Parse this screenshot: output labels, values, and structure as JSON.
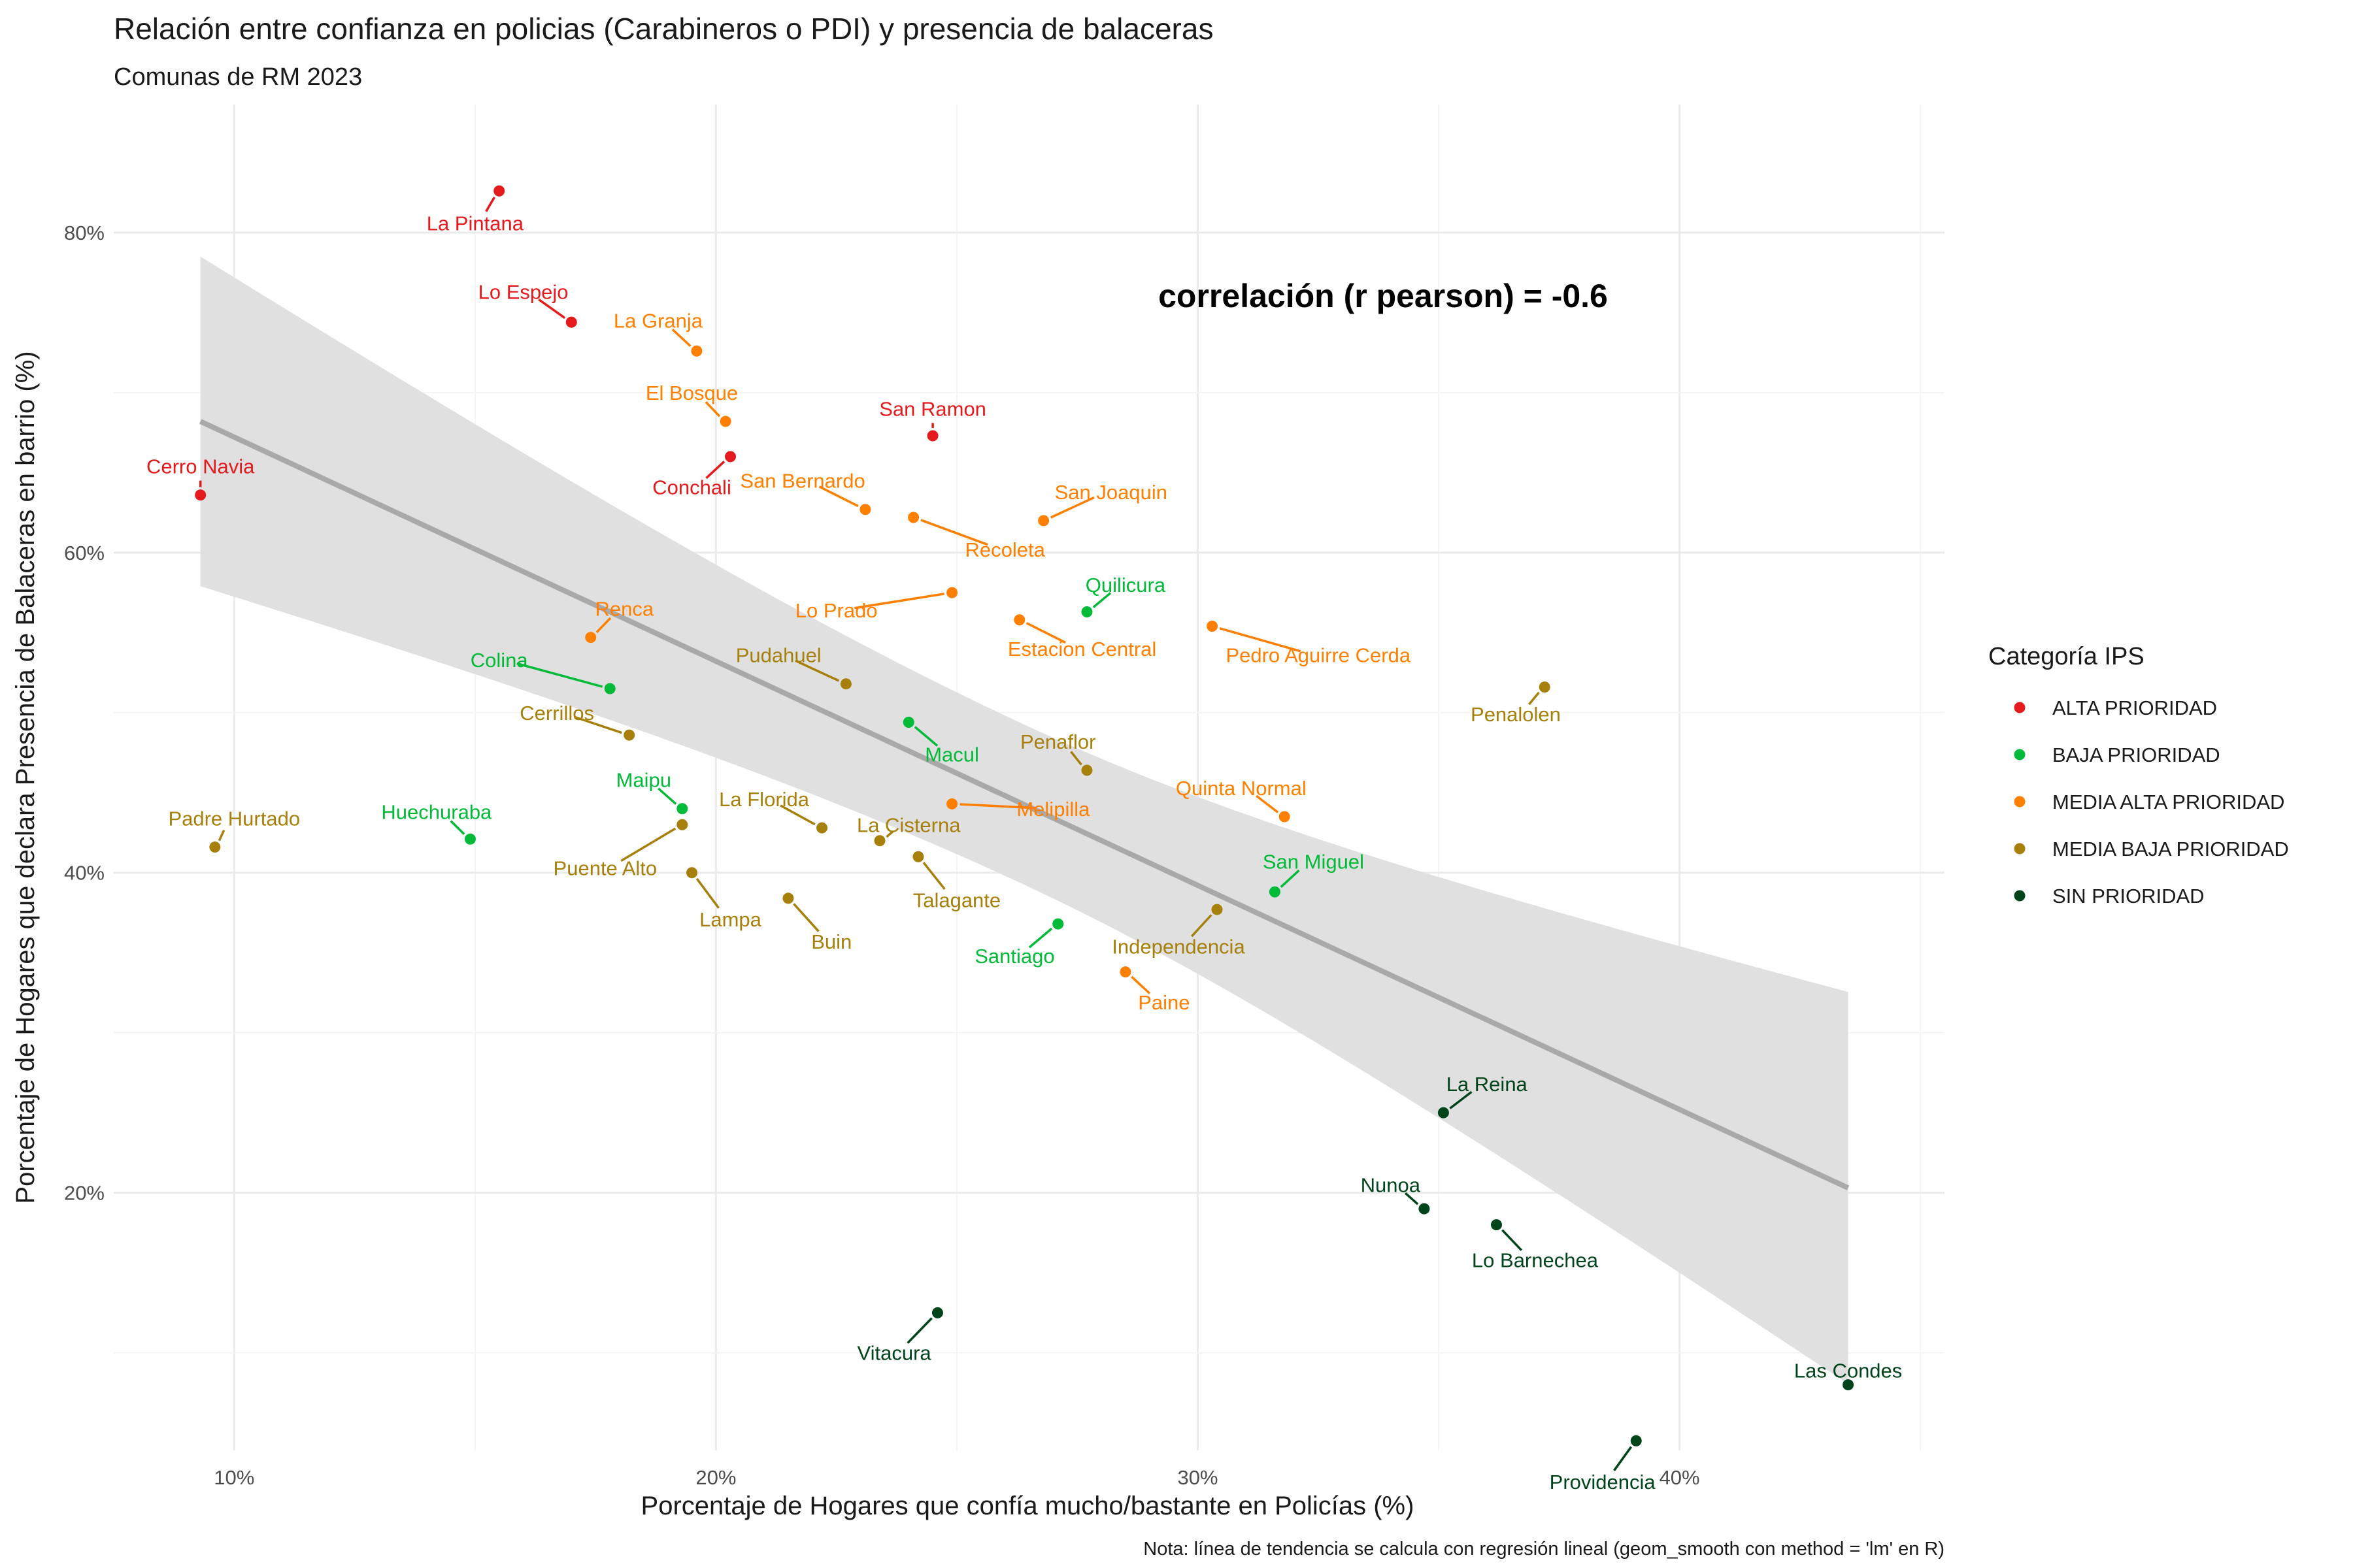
{
  "chart_data": {
    "type": "scatter",
    "title": "Relación entre confianza en policias (Carabineros o PDI) y presencia de balaceras",
    "subtitle": "Comunas de RM 2023",
    "xlabel": "Porcentaje de Hogares que confía mucho/bastante en Policías (%)",
    "ylabel": "Porcentaje de Hogares que declara Presencia de Balaceras en barrio (%)",
    "caption": "Nota: línea de tendencia se calcula con regresión lineal (geom_smooth con method = 'lm' en R)",
    "annotation": "correlación (r pearson) = -0.6",
    "xlim": [
      7.5,
      45.5
    ],
    "ylim": [
      0.039,
      0.88
    ],
    "x_ticks": [
      10,
      20,
      30,
      40
    ],
    "x_tick_labels": [
      "10%",
      "20%",
      "30%",
      "40%"
    ],
    "y_ticks": [
      0.2,
      0.4,
      0.6,
      0.8
    ],
    "y_tick_labels": [
      "20%",
      "40%",
      "60%",
      "80%"
    ],
    "grid": true,
    "legend": {
      "title": "Categoría IPS",
      "position": "right",
      "entries": [
        {
          "key": "ALTA",
          "label": "ALTA PRIORIDAD",
          "color": "#e41a1c"
        },
        {
          "key": "BAJA",
          "label": "BAJA PRIORIDAD",
          "color": "#00ba38"
        },
        {
          "key": "MEDIA_ALTA",
          "label": "MEDIA ALTA PRIORIDAD",
          "color": "#ff7f00"
        },
        {
          "key": "MEDIA_BAJA",
          "label": "MEDIA BAJA PRIORIDAD",
          "color": "#a6800a"
        },
        {
          "key": "SIN",
          "label": "SIN PRIORIDAD",
          "color": "#00441b"
        }
      ]
    },
    "trend": {
      "x": [
        9.3,
        43.5
      ],
      "y": [
        0.682,
        0.203
      ],
      "band_x": [
        9.3,
        43.5
      ],
      "band_lower": [
        0.58,
        0.08
      ],
      "band_upper": [
        0.786,
        0.325
      ],
      "line_color": "#a9a9a9",
      "band_color": "#e0e0e0"
    },
    "points": [
      {
        "name": "La Pintana",
        "x": 15.5,
        "y": 0.826,
        "cat": "ALTA",
        "lx": 15.0,
        "ly": 0.806
      },
      {
        "name": "Lo Espejo",
        "x": 17.0,
        "y": 0.744,
        "cat": "ALTA",
        "lx": 16.0,
        "ly": 3.63,
        "note": ""
      },
      {
        "name": "San Ramon",
        "x": 24.5,
        "y": 0.673,
        "cat": "ALTA",
        "lx": 24.5,
        "ly": 0.69
      },
      {
        "name": "Conchali",
        "x": 20.3,
        "y": 0.66,
        "cat": "ALTA",
        "lx": 19.5,
        "ly": 0.641
      },
      {
        "name": "Cerro Navia",
        "x": 9.3,
        "y": 0.636,
        "cat": "ALTA",
        "lx": 9.3,
        "ly": 0.654
      },
      {
        "name": "Quilicura",
        "x": 27.7,
        "y": 0.563,
        "cat": "BAJA",
        "lx": 28.5,
        "ly": 0.58
      },
      {
        "name": "Colina",
        "x": 17.8,
        "y": 0.515,
        "cat": "BAJA",
        "lx": 15.5,
        "ly": 0.533
      },
      {
        "name": "Macul",
        "x": 24.0,
        "y": 0.494,
        "cat": "BAJA",
        "lx": 24.9,
        "ly": 0.474
      },
      {
        "name": "Maipu",
        "x": 19.3,
        "y": 0.44,
        "cat": "BAJA",
        "lx": 18.5,
        "ly": 0.458
      },
      {
        "name": "Huechuraba",
        "x": 14.9,
        "y": 0.421,
        "cat": "BAJA",
        "lx": 14.2,
        "ly": 0.438
      },
      {
        "name": "San Miguel",
        "x": 31.6,
        "y": 0.388,
        "cat": "BAJA",
        "lx": 32.4,
        "ly": 0.407
      },
      {
        "name": "Santiago",
        "x": 27.1,
        "y": 0.368,
        "cat": "BAJA",
        "lx": 26.2,
        "ly": 0.348
      },
      {
        "name": "La Granja",
        "x": 19.6,
        "y": 0.726,
        "cat": "MEDIA_ALTA",
        "lx": 18.8,
        "ly": 0.745
      },
      {
        "name": "El Bosque",
        "x": 20.2,
        "y": 0.682,
        "cat": "MEDIA_ALTA",
        "lx": 19.5,
        "ly": 0.7
      },
      {
        "name": "San Bernardo",
        "x": 23.1,
        "y": 0.627,
        "cat": "MEDIA_ALTA",
        "lx": 21.8,
        "ly": 0.645
      },
      {
        "name": "Recoleta",
        "x": 24.1,
        "y": 0.622,
        "cat": "MEDIA_ALTA",
        "lx": 26.0,
        "ly": 0.602
      },
      {
        "name": "San Joaquin",
        "x": 26.8,
        "y": 0.62,
        "cat": "MEDIA_ALTA",
        "lx": 28.2,
        "ly": 0.638
      },
      {
        "name": "Lo Prado",
        "x": 24.9,
        "y": 0.575,
        "cat": "MEDIA_ALTA",
        "lx": 22.5,
        "ly": 0.564
      },
      {
        "name": "Estacion Central",
        "x": 26.3,
        "y": 0.558,
        "cat": "MEDIA_ALTA",
        "lx": 27.6,
        "ly": 0.54
      },
      {
        "name": "Pedro Aguirre Cerda",
        "x": 30.3,
        "y": 0.554,
        "cat": "MEDIA_ALTA",
        "lx": 32.5,
        "ly": 0.536
      },
      {
        "name": "Renca",
        "x": 17.4,
        "y": 0.547,
        "cat": "MEDIA_ALTA",
        "lx": 18.1,
        "ly": 0.565
      },
      {
        "name": "Quinta Normal",
        "x": 31.8,
        "y": 0.435,
        "cat": "MEDIA_ALTA",
        "lx": 30.9,
        "ly": 0.453
      },
      {
        "name": "Melipilla",
        "x": 24.9,
        "y": 0.443,
        "cat": "MEDIA_ALTA",
        "lx": 27.0,
        "ly": 0.44
      },
      {
        "name": "Paine",
        "x": 28.5,
        "y": 0.338,
        "cat": "MEDIA_ALTA",
        "lx": 29.3,
        "ly": 0.319
      },
      {
        "name": "Penalolen",
        "x": 37.2,
        "y": 0.516,
        "cat": "MEDIA_BAJA",
        "lx": 36.6,
        "ly": 0.499
      },
      {
        "name": "Pudahuel",
        "x": 22.7,
        "y": 0.518,
        "cat": "MEDIA_BAJA",
        "lx": 21.3,
        "ly": 0.536
      },
      {
        "name": "Cerrillos",
        "x": 18.2,
        "y": 0.486,
        "cat": "MEDIA_BAJA",
        "lx": 16.7,
        "ly": 0.5
      },
      {
        "name": "Penaflor",
        "x": 27.7,
        "y": 0.464,
        "cat": "MEDIA_BAJA",
        "lx": 27.1,
        "ly": 0.482
      },
      {
        "name": "La Florida",
        "x": 22.2,
        "y": 0.428,
        "cat": "MEDIA_BAJA",
        "lx": 21.0,
        "ly": 0.446
      },
      {
        "name": "La Cisterna",
        "x": 23.4,
        "y": 0.42,
        "cat": "MEDIA_BAJA",
        "lx": 24.0,
        "ly": 0.43
      },
      {
        "name": "Puente Alto",
        "x": 19.3,
        "y": 0.43,
        "cat": "MEDIA_BAJA",
        "lx": 17.7,
        "ly": 0.403
      },
      {
        "name": "Talagante",
        "x": 24.2,
        "y": 0.41,
        "cat": "MEDIA_BAJA",
        "lx": 25.0,
        "ly": 0.383
      },
      {
        "name": "Lampa",
        "x": 19.5,
        "y": 0.4,
        "cat": "MEDIA_BAJA",
        "lx": 20.3,
        "ly": 0.371
      },
      {
        "name": "Padre Hurtado",
        "x": 9.6,
        "y": 0.416,
        "cat": "MEDIA_BAJA",
        "lx": 10.0,
        "ly": 0.434
      },
      {
        "name": "Buin",
        "x": 21.5,
        "y": 0.384,
        "cat": "MEDIA_BAJA",
        "lx": 22.4,
        "ly": 0.357
      },
      {
        "name": "Independencia",
        "x": 30.4,
        "y": 0.377,
        "cat": "MEDIA_BAJA",
        "lx": 29.6,
        "ly": 0.354
      },
      {
        "name": "La Reina",
        "x": 35.1,
        "y": 0.25,
        "cat": "SIN",
        "lx": 36.0,
        "ly": 0.268
      },
      {
        "name": "Nunoa",
        "x": 34.7,
        "y": 0.19,
        "cat": "SIN",
        "lx": 34.0,
        "ly": 0.205
      },
      {
        "name": "Lo Barnechea",
        "x": 36.2,
        "y": 0.18,
        "cat": "SIN",
        "lx": 37.0,
        "ly": 0.158
      },
      {
        "name": "Vitacura",
        "x": 24.6,
        "y": 0.125,
        "cat": "SIN",
        "lx": 23.7,
        "ly": 0.1
      },
      {
        "name": "Las Condes",
        "x": 43.5,
        "y": 0.08,
        "cat": "SIN",
        "lx": 43.5,
        "ly": 0.089
      },
      {
        "name": "Providencia",
        "x": 39.1,
        "y": 0.045,
        "cat": "SIN",
        "lx": 38.4,
        "ly": 0.0195
      }
    ]
  }
}
